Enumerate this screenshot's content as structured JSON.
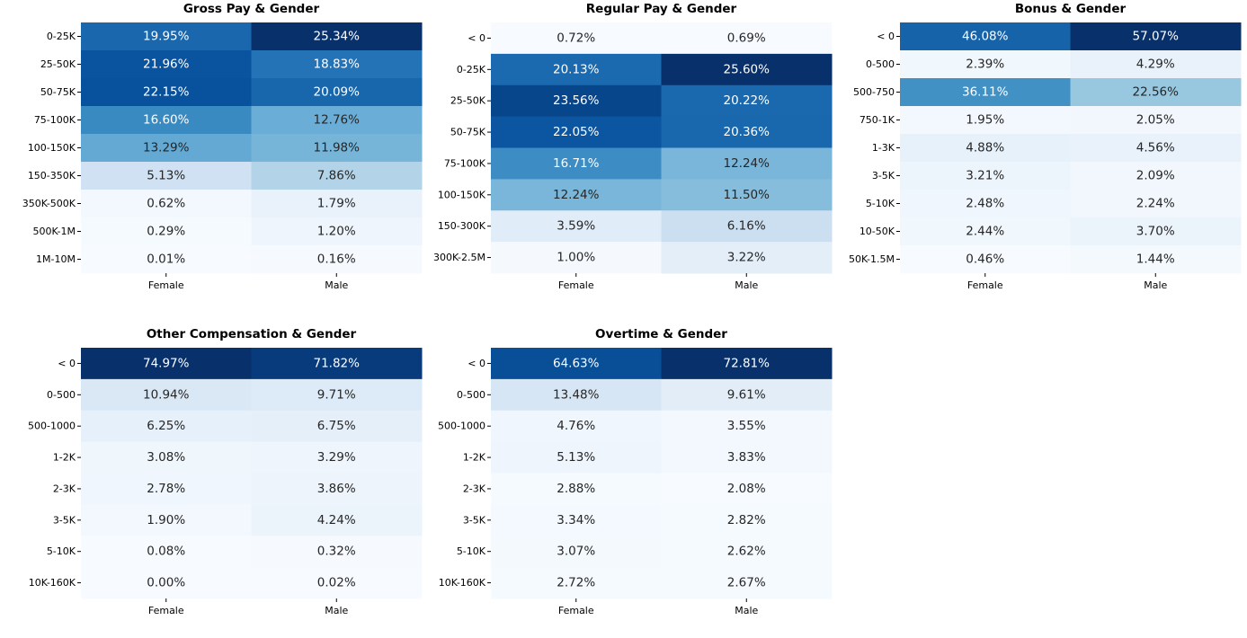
{
  "chart_data": [
    {
      "type": "heatmap",
      "title": "Gross Pay & Gender",
      "categories": [
        "Female",
        "Male"
      ],
      "rows": [
        "0-25K",
        "25-50K",
        "50-75K",
        "75-100K",
        "100-150K",
        "150-350K",
        "350K-500K",
        "500K-1M",
        "1M-10M"
      ],
      "values": [
        [
          19.95,
          25.34
        ],
        [
          21.96,
          18.83
        ],
        [
          22.15,
          20.09
        ],
        [
          16.6,
          12.76
        ],
        [
          13.29,
          11.98
        ],
        [
          5.13,
          7.86
        ],
        [
          0.62,
          1.79
        ],
        [
          0.29,
          1.2
        ],
        [
          0.01,
          0.16
        ]
      ],
      "labels": [
        [
          "19.95%",
          "25.34%"
        ],
        [
          "21.96%",
          "18.83%"
        ],
        [
          "22.15%",
          "20.09%"
        ],
        [
          "16.60%",
          "12.76%"
        ],
        [
          "13.29%",
          "11.98%"
        ],
        [
          "5.13%",
          "7.86%"
        ],
        [
          "0.62%",
          "1.79%"
        ],
        [
          "0.29%",
          "1.20%"
        ],
        [
          "0.01%",
          "0.16%"
        ]
      ],
      "colormap": "Blues"
    },
    {
      "type": "heatmap",
      "title": "Regular Pay & Gender",
      "categories": [
        "Female",
        "Male"
      ],
      "rows": [
        "< 0",
        "0-25K",
        "25-50K",
        "50-75K",
        "75-100K",
        "100-150K",
        "150-300K",
        "300K-2.5M"
      ],
      "values": [
        [
          0.72,
          0.69
        ],
        [
          20.13,
          25.6
        ],
        [
          23.56,
          20.22
        ],
        [
          22.05,
          20.36
        ],
        [
          16.71,
          12.24
        ],
        [
          12.24,
          11.5
        ],
        [
          3.59,
          6.16
        ],
        [
          1.0,
          3.22
        ]
      ],
      "labels": [
        [
          "0.72%",
          "0.69%"
        ],
        [
          "20.13%",
          "25.60%"
        ],
        [
          "23.56%",
          "20.22%"
        ],
        [
          "22.05%",
          "20.36%"
        ],
        [
          "16.71%",
          "12.24%"
        ],
        [
          "12.24%",
          "11.50%"
        ],
        [
          "3.59%",
          "6.16%"
        ],
        [
          "1.00%",
          "3.22%"
        ]
      ],
      "colormap": "Blues"
    },
    {
      "type": "heatmap",
      "title": "Bonus & Gender",
      "categories": [
        "Female",
        "Male"
      ],
      "rows": [
        "< 0",
        "0-500",
        "500-750",
        "750-1K",
        "1-3K",
        "3-5K",
        "5-10K",
        "10-50K",
        "50K-1.5M"
      ],
      "values": [
        [
          46.08,
          57.07
        ],
        [
          2.39,
          4.29
        ],
        [
          36.11,
          22.56
        ],
        [
          1.95,
          2.05
        ],
        [
          4.88,
          4.56
        ],
        [
          3.21,
          2.09
        ],
        [
          2.48,
          2.24
        ],
        [
          2.44,
          3.7
        ],
        [
          0.46,
          1.44
        ]
      ],
      "labels": [
        [
          "46.08%",
          "57.07%"
        ],
        [
          "2.39%",
          "4.29%"
        ],
        [
          "36.11%",
          "22.56%"
        ],
        [
          "1.95%",
          "2.05%"
        ],
        [
          "4.88%",
          "4.56%"
        ],
        [
          "3.21%",
          "2.09%"
        ],
        [
          "2.48%",
          "2.24%"
        ],
        [
          "2.44%",
          "3.70%"
        ],
        [
          "0.46%",
          "1.44%"
        ]
      ],
      "colormap": "Blues"
    },
    {
      "type": "heatmap",
      "title": "Other Compensation & Gender",
      "categories": [
        "Female",
        "Male"
      ],
      "rows": [
        "< 0",
        "0-500",
        "500-1000",
        "1-2K",
        "2-3K",
        "3-5K",
        "5-10K",
        "10K-160K"
      ],
      "values": [
        [
          74.97,
          71.82
        ],
        [
          10.94,
          9.71
        ],
        [
          6.25,
          6.75
        ],
        [
          3.08,
          3.29
        ],
        [
          2.78,
          3.86
        ],
        [
          1.9,
          4.24
        ],
        [
          0.08,
          0.32
        ],
        [
          0.0,
          0.02
        ]
      ],
      "labels": [
        [
          "74.97%",
          "71.82%"
        ],
        [
          "10.94%",
          "9.71%"
        ],
        [
          "6.25%",
          "6.75%"
        ],
        [
          "3.08%",
          "3.29%"
        ],
        [
          "2.78%",
          "3.86%"
        ],
        [
          "1.90%",
          "4.24%"
        ],
        [
          "0.08%",
          "0.32%"
        ],
        [
          "0.00%",
          "0.02%"
        ]
      ],
      "colormap": "Blues"
    },
    {
      "type": "heatmap",
      "title": "Overtime & Gender",
      "categories": [
        "Female",
        "Male"
      ],
      "rows": [
        "< 0",
        "0-500",
        "500-1000",
        "1-2K",
        "2-3K",
        "3-5K",
        "5-10K",
        "10K-160K"
      ],
      "values": [
        [
          64.63,
          72.81
        ],
        [
          13.48,
          9.61
        ],
        [
          4.76,
          3.55
        ],
        [
          5.13,
          3.83
        ],
        [
          2.88,
          2.08
        ],
        [
          3.34,
          2.82
        ],
        [
          3.07,
          2.62
        ],
        [
          2.72,
          2.67
        ]
      ],
      "labels": [
        [
          "64.63%",
          "72.81%"
        ],
        [
          "13.48%",
          "9.61%"
        ],
        [
          "4.76%",
          "3.55%"
        ],
        [
          "5.13%",
          "3.83%"
        ],
        [
          "2.88%",
          "2.08%"
        ],
        [
          "3.34%",
          "2.82%"
        ],
        [
          "3.07%",
          "2.62%"
        ],
        [
          "2.72%",
          "2.67%"
        ]
      ],
      "colormap": "Blues"
    }
  ]
}
